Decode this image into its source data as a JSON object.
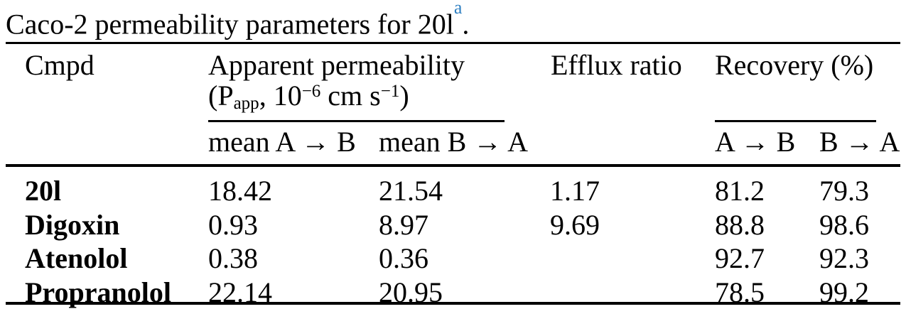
{
  "page": {
    "background": "#ffffff",
    "text_color": "#000000",
    "rule_color": "#000000",
    "footnote_blue": "#2e7fc1"
  },
  "caption": {
    "text": "Caco-2 permeability parameters for 20l",
    "footnote_marker": "a",
    "suffix": "."
  },
  "header": {
    "col_cmpd": "Cmpd",
    "group_apparent_permeability": {
      "title": "Apparent permeability",
      "unit_parts": {
        "open": "(P",
        "sub": "app",
        "comma_base": ", 10",
        "sup_exp1": "−6",
        "mid_units": " cm s",
        "sup_exp2": "−1",
        "close": ")"
      }
    },
    "col_efflux_ratio": "Efflux ratio",
    "group_recovery": "Recovery (%)",
    "sub_mean_a_to_b": "mean A → B",
    "sub_mean_b_to_a": "mean B → A",
    "sub_recovery_a_to_b": "A → B",
    "sub_recovery_b_to_a": "B → A"
  },
  "rows": [
    {
      "cmpd": "20l",
      "mean_a_to_b": "18.42",
      "mean_b_to_a": "21.54",
      "efflux_ratio": "1.17",
      "recovery_a_to_b": "81.2",
      "recovery_b_to_a": "79.3"
    },
    {
      "cmpd": "Digoxin",
      "mean_a_to_b": "0.93",
      "mean_b_to_a": "8.97",
      "efflux_ratio": "9.69",
      "recovery_a_to_b": "88.8",
      "recovery_b_to_a": "98.6"
    },
    {
      "cmpd": "Atenolol",
      "mean_a_to_b": "0.38",
      "mean_b_to_a": "0.36",
      "efflux_ratio": "",
      "recovery_a_to_b": "92.7",
      "recovery_b_to_a": "92.3"
    },
    {
      "cmpd": "Propranolol",
      "mean_a_to_b": "22.14",
      "mean_b_to_a": "20.95",
      "efflux_ratio": "",
      "recovery_a_to_b": "78.5",
      "recovery_b_to_a": "99.2"
    }
  ]
}
